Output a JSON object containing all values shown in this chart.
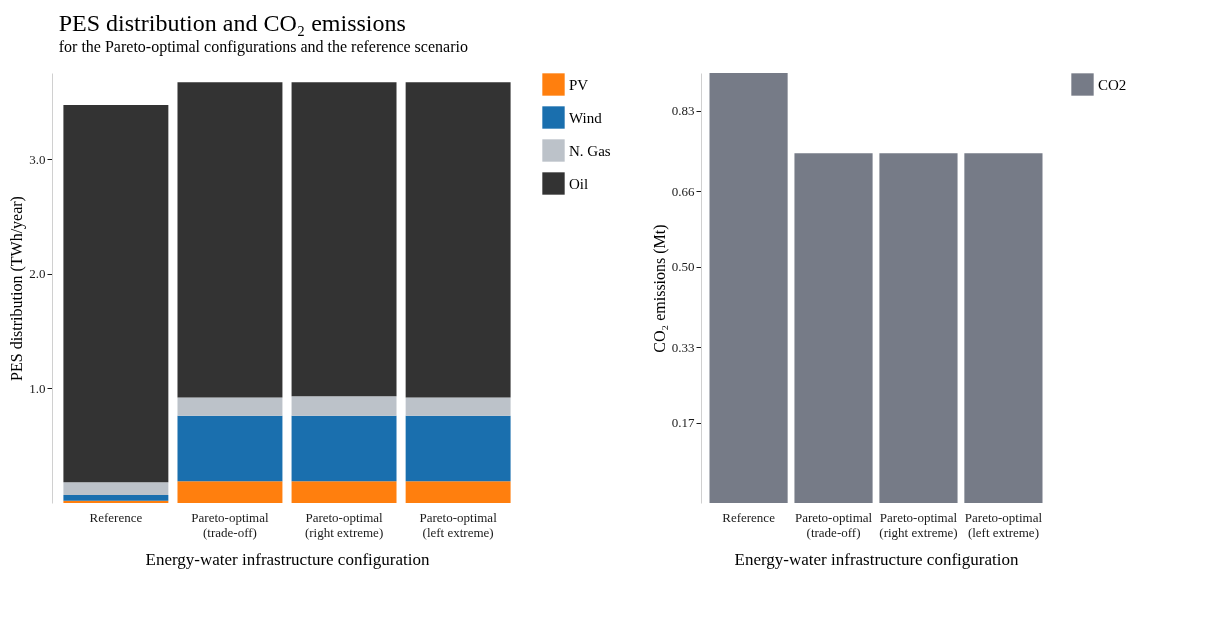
{
  "chart_data": [
    {
      "type": "bar",
      "stacked": true,
      "legend": "right",
      "title": "PES distribution and CO₂ emissions",
      "subtitle": "for the Pareto-optimal configurations and the reference scenario",
      "xlabel": "Energy-water infrastructure configuration",
      "ylabel": "PES distribution (TWh/year)",
      "categories": [
        "Reference",
        "Pareto-optimal\n(trade-off)",
        "Pareto-optimal\n(right extreme)",
        "Pareto-optimal\n(left extreme)"
      ],
      "series": [
        {
          "name": "PV",
          "color": "#ff7f0e",
          "values": [
            0.02,
            0.19,
            0.19,
            0.19
          ]
        },
        {
          "name": "Wind",
          "color": "#1a6fae",
          "values": [
            0.05,
            0.57,
            0.57,
            0.57
          ]
        },
        {
          "name": "N. Gas",
          "color": "#bcc2c9",
          "values": [
            0.11,
            0.16,
            0.17,
            0.16
          ]
        },
        {
          "name": "Oil",
          "color": "#333333",
          "values": [
            3.29,
            2.75,
            2.74,
            2.75
          ]
        }
      ],
      "ylim": [
        0,
        3.75
      ],
      "yticks": [
        {
          "value": 1,
          "label": "1.0"
        },
        {
          "value": 2,
          "label": "2.0"
        },
        {
          "value": 3,
          "label": "3.0"
        }
      ]
    },
    {
      "type": "bar",
      "xlabel": "Energy-water infrastructure configuration",
      "ylabel": "CO₂ emissions (Mt)",
      "categories": [
        "Reference",
        "Pareto-optimal\n(trade-off)",
        "Pareto-optimal\n(right extreme)",
        "Pareto-optimal\n(left extreme)"
      ],
      "series": [
        {
          "name": "CO2",
          "color": "#767b87",
          "values": [
            0.91,
            0.74,
            0.74,
            0.74
          ]
        }
      ],
      "ylim": [
        0,
        0.91
      ],
      "yticks": [
        0.17,
        0.33,
        {
          "value": 0.5,
          "label": "0.50"
        },
        0.66,
        0.83
      ],
      "legend": "right"
    }
  ]
}
